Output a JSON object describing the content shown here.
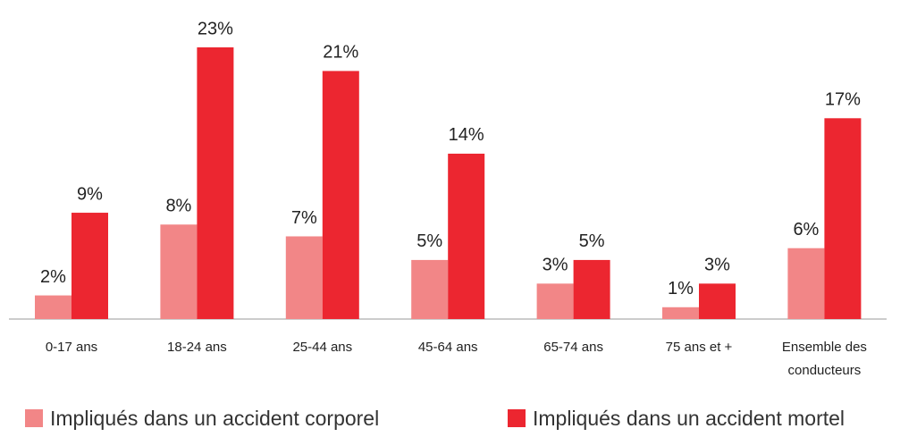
{
  "chart_data": {
    "type": "bar",
    "categories": [
      "0-17 ans",
      "18-24 ans",
      "25-44 ans",
      "45-64 ans",
      "65-74 ans",
      "75 ans et +",
      "Ensemble des conducteurs"
    ],
    "series": [
      {
        "name": "Impliqués dans un accident corporel",
        "color": "#f28687",
        "values": [
          2,
          8,
          7,
          5,
          3,
          1,
          6
        ],
        "value_labels": [
          "2%",
          "8%",
          "7%",
          "5%",
          "3%",
          "1%",
          "6%"
        ]
      },
      {
        "name": "Impliqués dans un accident mortel",
        "color": "#ec2630",
        "values": [
          9,
          23,
          21,
          14,
          5,
          3,
          17
        ],
        "value_labels": [
          "9%",
          "23%",
          "21%",
          "14%",
          "5%",
          "3%",
          "17%"
        ]
      }
    ],
    "legend": "bottom"
  }
}
